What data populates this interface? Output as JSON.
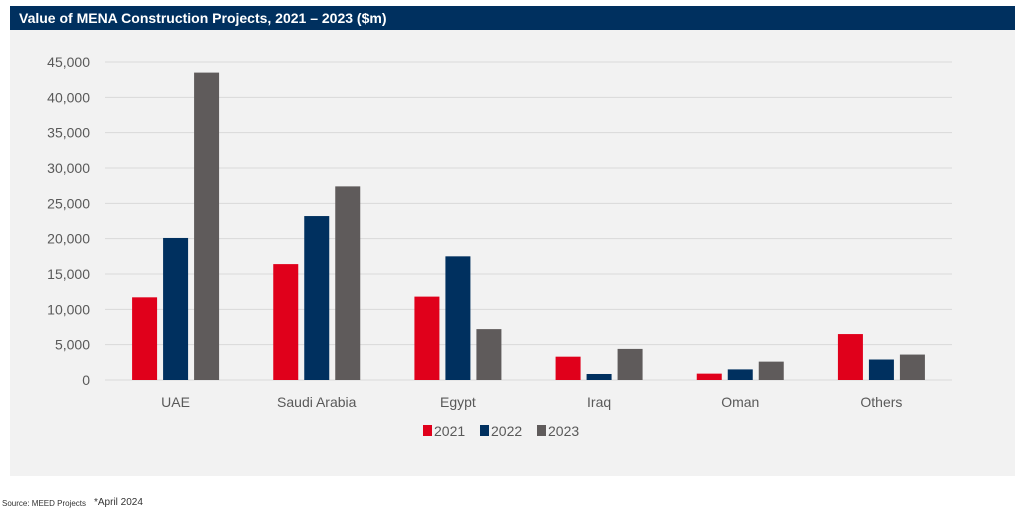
{
  "chart_data": {
    "type": "bar",
    "title": "Value of MENA Construction Projects, 2021 – 2023 ($m)",
    "categories": [
      "UAE",
      "Saudi Arabia",
      "Egypt",
      "Iraq",
      "Oman",
      "Others"
    ],
    "series": [
      {
        "name": "2021",
        "color": "#e0001b",
        "values": [
          11700,
          16400,
          11800,
          3300,
          900,
          6500
        ]
      },
      {
        "name": "2022",
        "color": "#00305f",
        "values": [
          20100,
          23200,
          17500,
          850,
          1500,
          2900
        ]
      },
      {
        "name": "2023",
        "color": "#5f5b5b",
        "values": [
          43500,
          27400,
          7200,
          4400,
          2600,
          3600
        ]
      }
    ],
    "ylim": [
      0,
      45000
    ],
    "yticks": [
      "0",
      "5,000",
      "10,000",
      "15,000",
      "20,000",
      "25,000",
      "30,000",
      "35,000",
      "40,000",
      "45,000"
    ],
    "xlabel": "",
    "ylabel": "",
    "grid": true,
    "legend": "bottom-center"
  },
  "footer": {
    "source": "Source: MEED Projects",
    "note": "*April 2024"
  }
}
